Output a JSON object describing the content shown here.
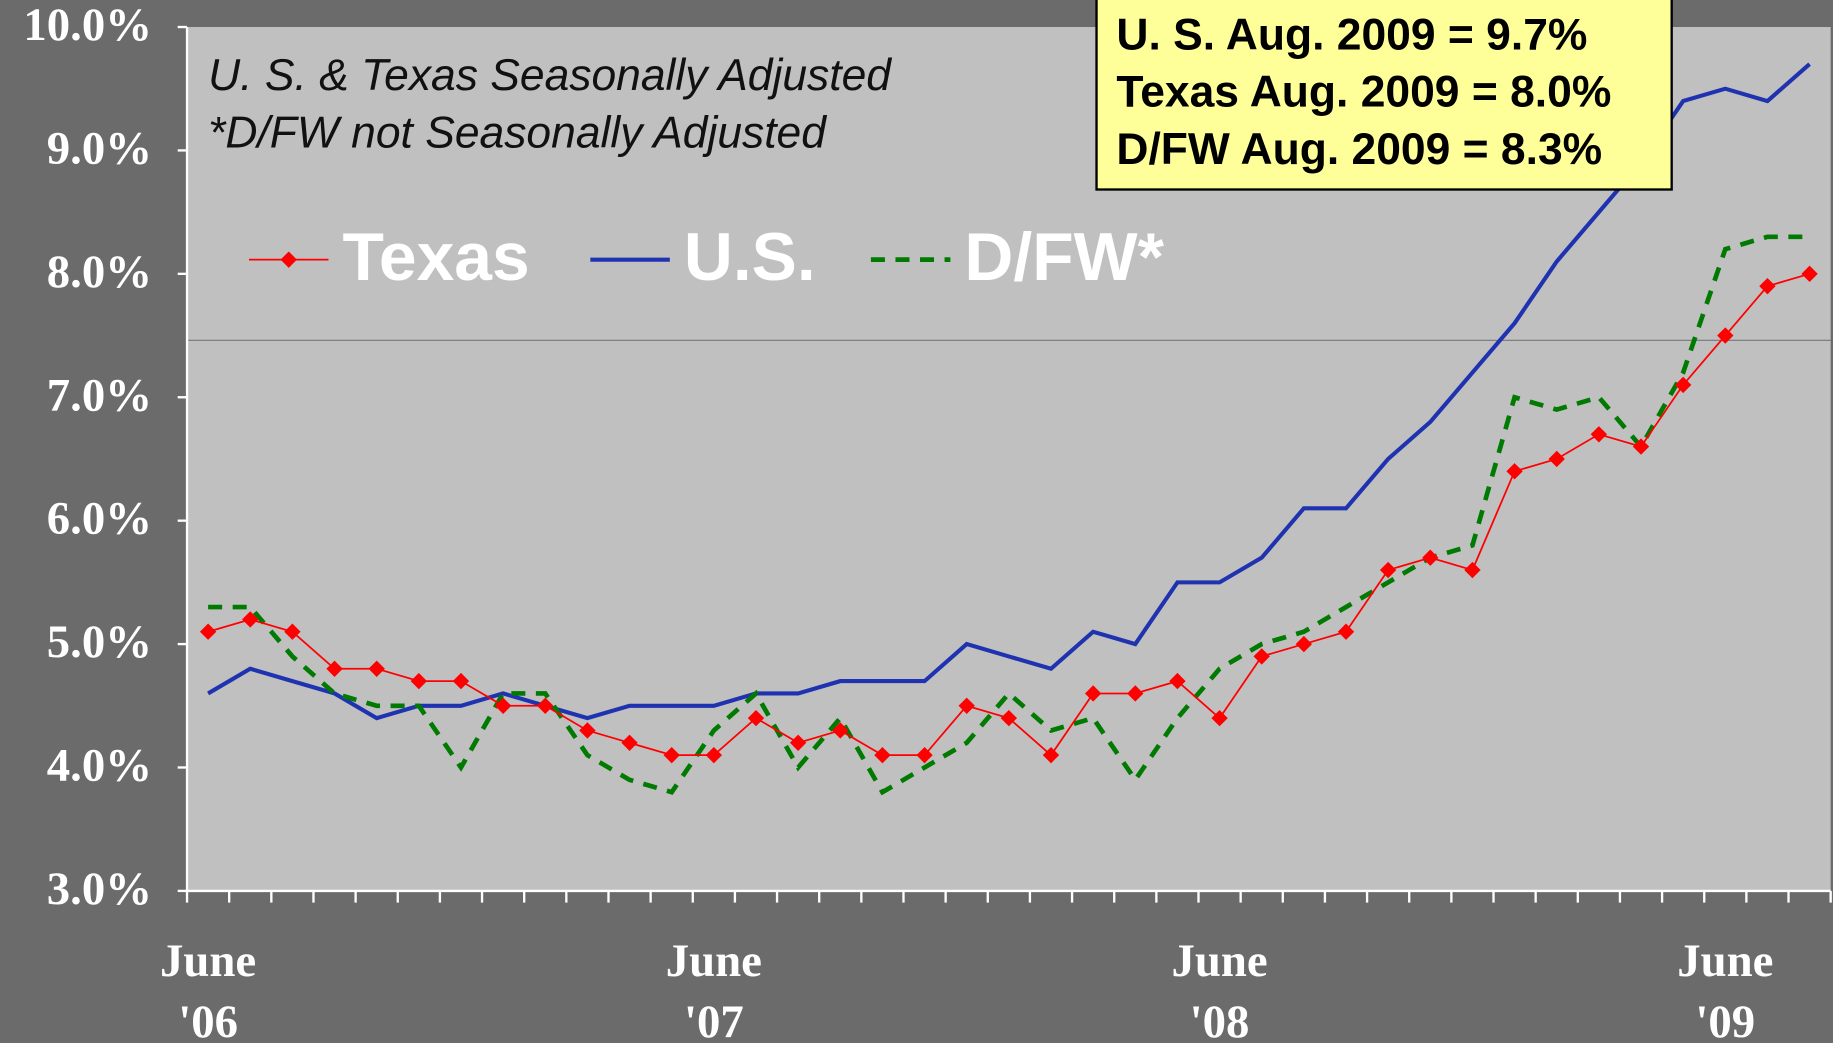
{
  "chart_data": {
    "type": "line",
    "subtitle": [
      "U. S. & Texas Seasonally Adjusted",
      "*D/FW not Seasonally Adjusted"
    ],
    "annotations": [
      "U. S. Aug. 2009 = 9.7%",
      "Texas Aug. 2009 = 8.0%",
      "D/FW Aug. 2009 = 8.3%"
    ],
    "categories": [
      "June '06",
      null,
      null,
      null,
      null,
      null,
      null,
      null,
      null,
      null,
      null,
      null,
      "June '07",
      null,
      null,
      null,
      null,
      null,
      null,
      null,
      null,
      null,
      null,
      null,
      "June '08",
      null,
      null,
      null,
      null,
      null,
      null,
      null,
      null,
      null,
      null,
      null,
      "June '09",
      null,
      null
    ],
    "series": [
      {
        "name": "Texas",
        "color": "#ff0000",
        "style": "marker",
        "values": [
          5.1,
          5.2,
          5.1,
          4.8,
          4.8,
          4.7,
          4.7,
          4.5,
          4.5,
          4.3,
          4.2,
          4.1,
          4.1,
          4.4,
          4.2,
          4.3,
          4.1,
          4.1,
          4.5,
          4.4,
          4.1,
          4.6,
          4.6,
          4.7,
          4.4,
          4.9,
          5.0,
          5.1,
          5.6,
          5.7,
          5.6,
          6.4,
          6.5,
          6.7,
          6.6,
          7.1,
          7.5,
          7.9,
          8.0
        ]
      },
      {
        "name": "U.S.",
        "color": "#1f33b0",
        "style": "solid",
        "values": [
          4.6,
          4.8,
          4.7,
          4.6,
          4.4,
          4.5,
          4.5,
          4.6,
          4.5,
          4.4,
          4.5,
          4.5,
          4.5,
          4.6,
          4.6,
          4.7,
          4.7,
          4.7,
          5.0,
          4.9,
          4.8,
          5.1,
          5.0,
          5.5,
          5.5,
          5.7,
          6.1,
          6.1,
          6.5,
          6.8,
          7.2,
          7.6,
          8.1,
          8.5,
          8.9,
          9.4,
          9.5,
          9.4,
          9.7
        ]
      },
      {
        "name": "D/FW*",
        "color": "#007a00",
        "style": "dashed",
        "values": [
          5.3,
          5.3,
          4.9,
          4.6,
          4.5,
          4.5,
          4.0,
          4.6,
          4.6,
          4.1,
          3.9,
          3.8,
          4.3,
          4.6,
          4.0,
          4.4,
          3.8,
          4.0,
          4.2,
          4.6,
          4.3,
          4.4,
          3.9,
          4.4,
          4.8,
          5.0,
          5.1,
          5.3,
          5.5,
          5.7,
          5.8,
          7.0,
          6.9,
          7.0,
          6.6,
          7.2,
          8.2,
          8.3,
          8.3
        ]
      }
    ],
    "ylim": [
      3,
      10
    ],
    "yticks": [
      {
        "value": 3,
        "label": "3.0%"
      },
      {
        "value": 4,
        "label": "4.0%"
      },
      {
        "value": 5,
        "label": "5.0%"
      },
      {
        "value": 6,
        "label": "6.0%"
      },
      {
        "value": 7,
        "label": "7.0%"
      },
      {
        "value": 8,
        "label": "8.0%"
      },
      {
        "value": 9,
        "label": "9.0%"
      },
      {
        "value": 10,
        "label": "10.0%"
      }
    ],
    "legend": "top-left"
  }
}
